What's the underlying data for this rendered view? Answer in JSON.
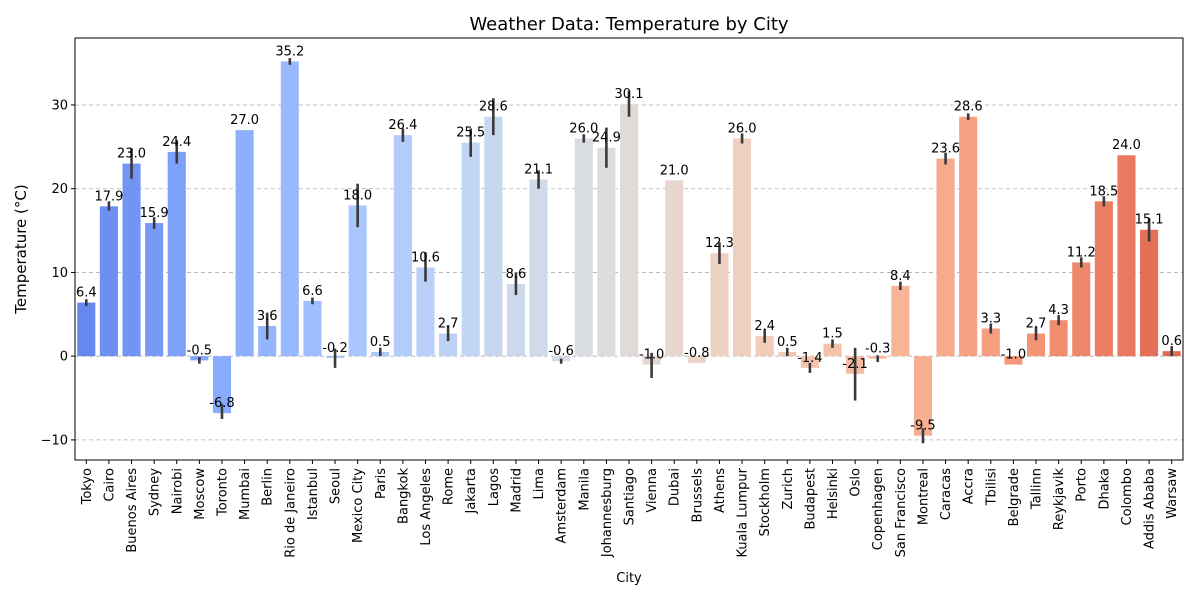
{
  "chart_data": {
    "type": "bar",
    "title": "Weather Data: Temperature by City",
    "xlabel": "City",
    "ylabel": "Temperature (°C)",
    "ylim": [
      -12.4,
      38.0
    ],
    "yticks": [
      -10,
      0,
      10,
      20,
      30
    ],
    "ytick_labels": [
      "−10",
      "0",
      "10",
      "20",
      "30"
    ],
    "grid": "horizontal dashed",
    "legend": "none",
    "colormap": "coolwarm",
    "categories": [
      "Tokyo",
      "Cairo",
      "Buenos Aires",
      "Sydney",
      "Nairobi",
      "Moscow",
      "Toronto",
      "Mumbai",
      "Berlin",
      "Rio de Janeiro",
      "Istanbul",
      "Seoul",
      "Mexico City",
      "Paris",
      "Bangkok",
      "Los Angeles",
      "Rome",
      "Jakarta",
      "Lagos",
      "Madrid",
      "Lima",
      "Amsterdam",
      "Manila",
      "Johannesburg",
      "Santiago",
      "Vienna",
      "Dubai",
      "Brussels",
      "Athens",
      "Kuala Lumpur",
      "Stockholm",
      "Zurich",
      "Budapest",
      "Helsinki",
      "Oslo",
      "Copenhagen",
      "San Francisco",
      "Montreal",
      "Caracas",
      "Accra",
      "Tbilisi",
      "Belgrade",
      "Tallinn",
      "Reykjavik",
      "Porto",
      "Dhaka",
      "Colombo",
      "Addis Ababa",
      "Warsaw"
    ],
    "values": [
      6.4,
      17.9,
      23.0,
      15.9,
      24.4,
      -0.5,
      -6.8,
      27.0,
      3.6,
      35.2,
      6.6,
      -0.2,
      18.0,
      0.5,
      26.4,
      10.6,
      2.7,
      25.5,
      28.6,
      8.6,
      21.1,
      -0.6,
      26.0,
      24.9,
      30.1,
      -1.0,
      21.0,
      -0.8,
      12.3,
      26.0,
      2.4,
      0.5,
      -1.4,
      1.5,
      -2.1,
      -0.3,
      8.4,
      -9.5,
      23.6,
      28.6,
      3.3,
      -1.0,
      2.7,
      4.3,
      11.2,
      18.5,
      24.0,
      15.1,
      0.6
    ],
    "value_labels": [
      "6.4",
      "17.9",
      "23.0",
      "15.9",
      "24.4",
      "-0.5",
      "-6.8",
      "27.0",
      "3.6",
      "35.2",
      "6.6",
      "-0.2",
      "18.0",
      "0.5",
      "26.4",
      "10.6",
      "2.7",
      "25.5",
      "28.6",
      "8.6",
      "21.1",
      "-0.6",
      "26.0",
      "24.9",
      "30.1",
      "-1.0",
      "21.0",
      "-0.8",
      "12.3",
      "26.0",
      "2.4",
      "0.5",
      "-1.4",
      "1.5",
      "-2.1",
      "-0.3",
      "8.4",
      "-9.5",
      "23.6",
      "28.6",
      "3.3",
      "-1.0",
      "2.7",
      "4.3",
      "11.2",
      "18.5",
      "24.0",
      "15.1",
      "0.6"
    ],
    "error_bars": [
      [
        6.0,
        6.8
      ],
      [
        17.4,
        18.5
      ],
      [
        21.2,
        24.8
      ],
      [
        15.2,
        16.6
      ],
      [
        23.0,
        25.8
      ],
      [
        -0.9,
        -0.1
      ],
      [
        -7.5,
        -5.7
      ],
      [
        27.0,
        27.0
      ],
      [
        2.0,
        5.2
      ],
      [
        34.8,
        35.6
      ],
      [
        6.2,
        7.0
      ],
      [
        -1.4,
        0.9
      ],
      [
        15.4,
        20.6
      ],
      [
        0.0,
        1.0
      ],
      [
        25.6,
        27.2
      ],
      [
        8.9,
        12.4
      ],
      [
        1.8,
        3.7
      ],
      [
        23.8,
        27.2
      ],
      [
        26.4,
        30.8
      ],
      [
        7.3,
        10.0
      ],
      [
        20.0,
        22.2
      ],
      [
        -0.9,
        -0.3
      ],
      [
        25.5,
        26.5
      ],
      [
        22.5,
        27.3
      ],
      [
        28.6,
        31.7
      ],
      [
        -2.6,
        0.4
      ],
      [
        21.0,
        21.0
      ],
      [
        -0.8,
        -0.8
      ],
      [
        11.0,
        13.6
      ],
      [
        25.4,
        26.6
      ],
      [
        1.6,
        3.2
      ],
      [
        0.0,
        1.0
      ],
      [
        -2.0,
        -0.8
      ],
      [
        1.0,
        2.0
      ],
      [
        -5.3,
        1.0
      ],
      [
        -0.7,
        0.1
      ],
      [
        7.9,
        8.9
      ],
      [
        -10.4,
        -8.6
      ],
      [
        22.9,
        24.3
      ],
      [
        28.2,
        29.0
      ],
      [
        2.7,
        3.9
      ],
      [
        -1.0,
        -1.0
      ],
      [
        1.9,
        3.5
      ],
      [
        3.7,
        4.9
      ],
      [
        10.6,
        11.8
      ],
      [
        17.9,
        19.1
      ],
      [
        24.0,
        24.0
      ],
      [
        13.7,
        16.5
      ],
      [
        0.0,
        1.2
      ]
    ],
    "bar_colors": [
      "#6788ee",
      "#6c8ff1",
      "#7295f4",
      "#779af7",
      "#7da0f9",
      "#82a6fb",
      "#88abfd",
      "#8db0fe",
      "#93b5fe",
      "#98b9ff",
      "#9ebeff",
      "#a3c2fe",
      "#a9c6fd",
      "#aec9fc",
      "#b3cdfb",
      "#b9d0f9",
      "#bed2f6",
      "#c3d5f4",
      "#c7d7f0",
      "#ccd9ed",
      "#d1dae9",
      "#d5dbe5",
      "#d9dce1",
      "#dddcdc",
      "#e0dbd8",
      "#e4d9d2",
      "#e7d7ce",
      "#ead5c9",
      "#edd2c3",
      "#efcfbf",
      "#f1ccb8",
      "#f2c9b4",
      "#f4c5ad",
      "#f5c1a9",
      "#f6bda2",
      "#f7b99e",
      "#f7b497",
      "#f7af91",
      "#f7aa8c",
      "#f6a385",
      "#f59f80",
      "#f4987a",
      "#f39475",
      "#f18d6f",
      "#ef886b",
      "#ec7f63",
      "#e97a5f",
      "#e57058",
      "#e26952"
    ]
  }
}
